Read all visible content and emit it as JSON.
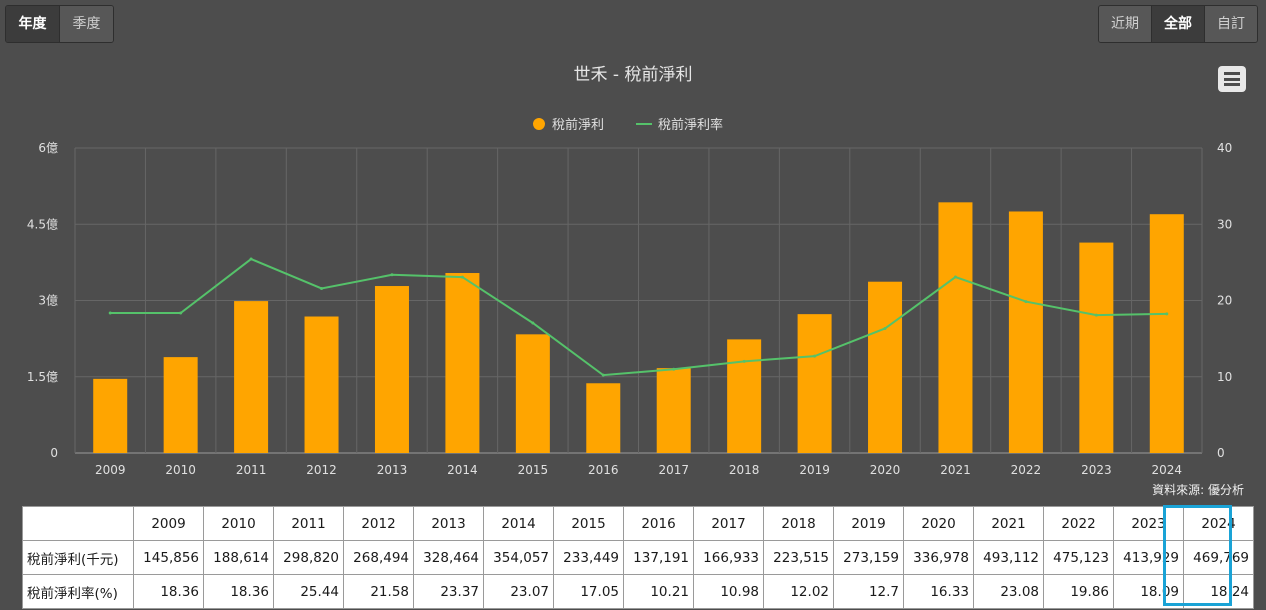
{
  "controls": {
    "left": [
      {
        "label": "年度",
        "active": true
      },
      {
        "label": "季度",
        "active": false
      }
    ],
    "right": [
      {
        "label": "近期",
        "active": false
      },
      {
        "label": "全部",
        "active": true
      },
      {
        "label": "自訂",
        "active": false
      }
    ]
  },
  "source": "資料來源: 優分析",
  "colors": {
    "bar": "#ffa500",
    "line": "#55c26a",
    "highlight": "#1aa3d6"
  },
  "icons": {
    "menu": "hamburger-menu-icon"
  },
  "chart_data": {
    "type": "bar",
    "title": "世禾 - 稅前淨利",
    "categories": [
      "2009",
      "2010",
      "2011",
      "2012",
      "2013",
      "2014",
      "2015",
      "2016",
      "2017",
      "2018",
      "2019",
      "2020",
      "2021",
      "2022",
      "2023",
      "2024"
    ],
    "series": [
      {
        "name": "稅前淨利",
        "type": "bar",
        "axis": "left",
        "values": [
          145856,
          188614,
          298820,
          268494,
          328464,
          354057,
          233449,
          137191,
          166933,
          223515,
          273159,
          336978,
          493112,
          475123,
          413929,
          469769
        ]
      },
      {
        "name": "稅前淨利率",
        "type": "line",
        "axis": "right",
        "values": [
          18.36,
          18.36,
          25.44,
          21.58,
          23.37,
          23.07,
          17.05,
          10.21,
          10.98,
          12.02,
          12.7,
          16.33,
          23.08,
          19.86,
          18.09,
          18.24
        ]
      }
    ],
    "y_left": {
      "ticks": [
        "0",
        "1.5億",
        "3億",
        "4.5億",
        "6億"
      ],
      "range": [
        0,
        600000
      ]
    },
    "y_right": {
      "ticks": [
        "0",
        "10",
        "20",
        "30",
        "40"
      ],
      "range": [
        0,
        40
      ]
    },
    "legend_position": "top-center",
    "grid": true
  },
  "table": {
    "years": [
      "2009",
      "2010",
      "2011",
      "2012",
      "2013",
      "2014",
      "2015",
      "2016",
      "2017",
      "2018",
      "2019",
      "2020",
      "2021",
      "2022",
      "2023",
      "2024"
    ],
    "rows": [
      {
        "label": "稅前淨利(千元)",
        "values": [
          "145,856",
          "188,614",
          "298,820",
          "268,494",
          "328,464",
          "354,057",
          "233,449",
          "137,191",
          "166,933",
          "223,515",
          "273,159",
          "336,978",
          "493,112",
          "475,123",
          "413,929",
          "469,769"
        ]
      },
      {
        "label": "稅前淨利率(%)",
        "values": [
          "18.36",
          "18.36",
          "25.44",
          "21.58",
          "23.37",
          "23.07",
          "17.05",
          "10.21",
          "10.98",
          "12.02",
          "12.7",
          "16.33",
          "23.08",
          "19.86",
          "18.09",
          "18.24"
        ]
      }
    ]
  }
}
